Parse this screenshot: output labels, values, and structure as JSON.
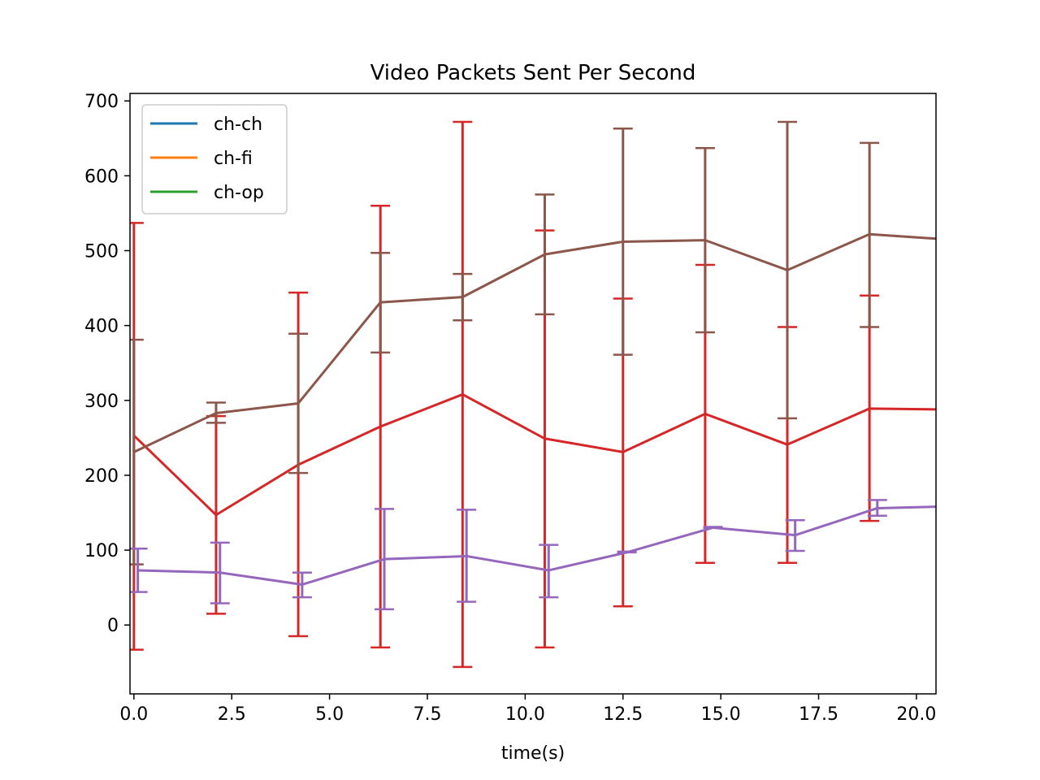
{
  "chart_data": {
    "type": "line",
    "title": "Video Packets Sent Per Second",
    "xlabel": "time(s)",
    "ylabel": "",
    "xlim": [
      -0.1,
      20.5
    ],
    "ylim": [
      -92,
      710
    ],
    "xticks": [
      0.0,
      2.5,
      5.0,
      7.5,
      10.0,
      12.5,
      15.0,
      17.5,
      20.0
    ],
    "xtick_labels": [
      "0.0",
      "2.5",
      "5.0",
      "7.5",
      "10.0",
      "12.5",
      "15.0",
      "17.5",
      "20.0"
    ],
    "yticks": [
      0,
      100,
      200,
      300,
      400,
      500,
      600,
      700
    ],
    "ytick_labels": [
      "0",
      "100",
      "200",
      "300",
      "400",
      "500",
      "600",
      "700"
    ],
    "legend": {
      "placement": "upper-left",
      "entries": [
        {
          "label": "ch-ch",
          "color": "#1f77b4"
        },
        {
          "label": "ch-fi",
          "color": "#ff7f0e"
        },
        {
          "label": "ch-op",
          "color": "#2ca02c"
        }
      ]
    },
    "series": [
      {
        "color": "#d62728",
        "x": [
          0.0,
          2.1,
          4.2,
          6.3,
          8.4,
          10.5,
          12.5,
          14.6,
          16.7,
          18.8,
          20.5
        ],
        "y": [
          253,
          147,
          214,
          265,
          308,
          249,
          231,
          282,
          241,
          289,
          288
        ],
        "err_lower": [
          -33,
          15,
          -15,
          -30,
          -56,
          -30,
          25,
          83,
          83,
          139,
          null
        ],
        "err_upper": [
          537,
          279,
          444,
          560,
          672,
          527,
          436,
          481,
          398,
          440,
          null
        ]
      },
      {
        "color": "#8c564b",
        "x": [
          0.0,
          2.1,
          4.2,
          6.3,
          8.4,
          10.5,
          12.5,
          14.6,
          16.7,
          18.8,
          20.5
        ],
        "y": [
          231,
          283,
          296,
          431,
          438,
          495,
          512,
          514,
          474,
          522,
          516
        ],
        "err_lower": [
          81,
          270,
          203,
          364,
          407,
          415,
          361,
          391,
          276,
          398,
          null
        ],
        "err_upper": [
          381,
          297,
          389,
          497,
          469,
          575,
          663,
          637,
          672,
          644,
          null
        ]
      },
      {
        "color": "#9467bd",
        "x": [
          0.1,
          2.2,
          4.3,
          6.4,
          8.5,
          10.6,
          12.6,
          14.8,
          16.9,
          19.0,
          20.5
        ],
        "y": [
          73,
          70,
          54,
          88,
          92,
          73,
          97,
          130,
          120,
          156,
          158
        ],
        "err_lower": [
          44,
          29,
          37,
          21,
          31,
          37,
          97,
          130,
          99,
          146,
          null
        ],
        "err_upper": [
          102,
          110,
          70,
          155,
          154,
          107,
          98,
          131,
          140,
          167,
          null
        ]
      }
    ]
  }
}
